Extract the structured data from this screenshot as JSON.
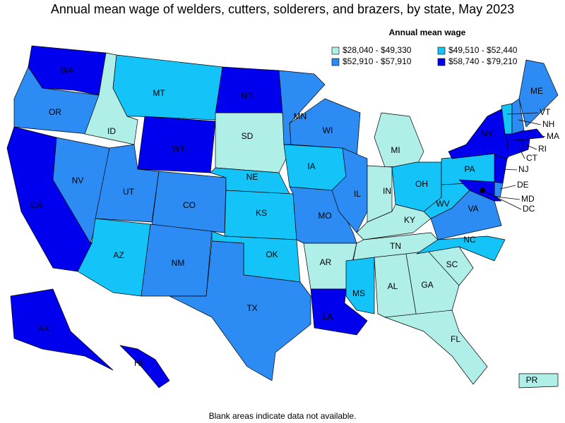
{
  "title": "Annual mean wage of welders, cutters, solderers, and brazers, by state, May 2023",
  "legend": {
    "title": "Annual mean wage",
    "items": [
      {
        "label": "$28,040 - $49,330",
        "color": "#b0eee8"
      },
      {
        "label": "$49,510 - $52,440",
        "color": "#14c4f8"
      },
      {
        "label": "$52,910 - $57,910",
        "color": "#2c8cf4"
      },
      {
        "label": "$58,740 - $79,210",
        "color": "#0000ee"
      }
    ]
  },
  "states": [
    {
      "label": "WA",
      "color": "#0000ee"
    },
    {
      "label": "OR",
      "color": "#2c8cf4"
    },
    {
      "label": "CA",
      "color": "#0000ee"
    },
    {
      "label": "NV",
      "color": "#2c8cf4"
    },
    {
      "label": "ID",
      "color": "#b0eee8"
    },
    {
      "label": "MT",
      "color": "#14c4f8"
    },
    {
      "label": "WY",
      "color": "#0000ee"
    },
    {
      "label": "UT",
      "color": "#2c8cf4"
    },
    {
      "label": "CO",
      "color": "#2c8cf4"
    },
    {
      "label": "AZ",
      "color": "#14c4f8"
    },
    {
      "label": "NM",
      "color": "#2c8cf4"
    },
    {
      "label": "ND",
      "color": "#0000ee"
    },
    {
      "label": "SD",
      "color": "#b0eee8"
    },
    {
      "label": "NE",
      "color": "#14c4f8"
    },
    {
      "label": "KS",
      "color": "#14c4f8"
    },
    {
      "label": "OK",
      "color": "#14c4f8"
    },
    {
      "label": "TX",
      "color": "#2c8cf4"
    },
    {
      "label": "MN",
      "color": "#2c8cf4"
    },
    {
      "label": "IA",
      "color": "#14c4f8"
    },
    {
      "label": "MO",
      "color": "#2c8cf4"
    },
    {
      "label": "AR",
      "color": "#b0eee8"
    },
    {
      "label": "LA",
      "color": "#0000ee"
    },
    {
      "label": "WI",
      "color": "#2c8cf4"
    },
    {
      "label": "IL",
      "color": "#2c8cf4"
    },
    {
      "label": "MI",
      "color": "#b0eee8"
    },
    {
      "label": "IN",
      "color": "#b0eee8"
    },
    {
      "label": "OH",
      "color": "#14c4f8"
    },
    {
      "label": "KY",
      "color": "#b0eee8"
    },
    {
      "label": "TN",
      "color": "#b0eee8"
    },
    {
      "label": "MS",
      "color": "#14c4f8"
    },
    {
      "label": "AL",
      "color": "#b0eee8"
    },
    {
      "label": "GA",
      "color": "#b0eee8"
    },
    {
      "label": "FL",
      "color": "#b0eee8"
    },
    {
      "label": "SC",
      "color": "#b0eee8"
    },
    {
      "label": "NC",
      "color": "#14c4f8"
    },
    {
      "label": "VA",
      "color": "#2c8cf4"
    },
    {
      "label": "WV",
      "color": "#14c4f8"
    },
    {
      "label": "PA",
      "color": "#14c4f8"
    },
    {
      "label": "NY",
      "color": "#0000ee"
    },
    {
      "label": "NJ",
      "color": "#0000ee"
    },
    {
      "label": "DE",
      "color": "#2c8cf4"
    },
    {
      "label": "MD",
      "color": "#0000ee"
    },
    {
      "label": "DC",
      "color": "#0000ee"
    },
    {
      "label": "CT",
      "color": "#0000ee"
    },
    {
      "label": "RI",
      "color": "#0000ee"
    },
    {
      "label": "MA",
      "color": "#0000ee"
    },
    {
      "label": "VT",
      "color": "#14c4f8"
    },
    {
      "label": "NH",
      "color": "#2c8cf4"
    },
    {
      "label": "ME",
      "color": "#2c8cf4"
    },
    {
      "label": "AK",
      "color": "#0000ee"
    },
    {
      "label": "HI",
      "color": "#0000ee"
    },
    {
      "label": "PR",
      "color": "#b0eee8"
    }
  ],
  "footnote": "Blank areas indicate data not available."
}
